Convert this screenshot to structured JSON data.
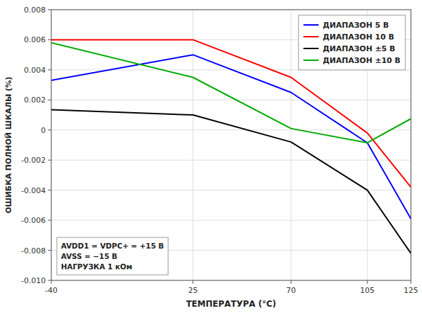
{
  "chart_data": {
    "type": "line",
    "xlabel": "ТЕМПЕРАТУРА (°C)",
    "ylabel": "ОШИБКА ПОЛНОЙ ШКАЛЫ (%)",
    "x": [
      -40,
      25,
      70,
      105,
      125
    ],
    "series": [
      {
        "name": "ДИАПАЗОН 5 В",
        "color": "#0000FF",
        "values": [
          0.0033,
          0.005,
          0.0025,
          -0.00085,
          -0.0059
        ]
      },
      {
        "name": "ДИАПАЗОН 10 В",
        "color": "#FF0000",
        "values": [
          0.006,
          0.006,
          0.0035,
          -0.0002,
          -0.0038
        ]
      },
      {
        "name": "ДИАПАЗОН ±5 В",
        "color": "#000000",
        "values": [
          0.00135,
          0.001,
          -0.0008,
          -0.004,
          -0.0082
        ]
      },
      {
        "name": "ДИАПАЗОН ±10 В",
        "color": "#00AA00",
        "values": [
          0.0058,
          0.0035,
          0.0001,
          -0.00085,
          0.00075
        ]
      }
    ],
    "xlim": [
      -40,
      125
    ],
    "ylim": [
      -0.01,
      0.008
    ],
    "xticks": [
      -40,
      25,
      70,
      105,
      125
    ],
    "yticks": [
      {
        "value": -0.01,
        "label": "-0.010"
      },
      -0.008,
      -0.006,
      -0.004,
      -0.002,
      0,
      0.002,
      0.004,
      0.006,
      0.008
    ],
    "grid": true,
    "legend": "upper right",
    "annotations": [
      "AVDD1 = VDPC+ = +15 В",
      "AVSS = −15 В",
      "НАГРУЗКА 1 кОм"
    ]
  }
}
